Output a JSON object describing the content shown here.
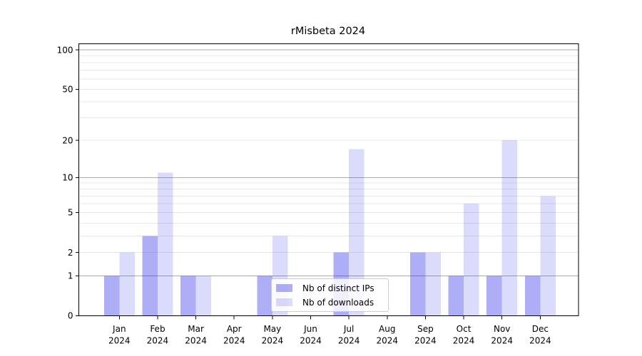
{
  "chart_data": {
    "type": "bar",
    "title": "rMisbeta 2024",
    "categories": [
      "Jan",
      "Feb",
      "Mar",
      "Apr",
      "May",
      "Jun",
      "Jul",
      "Aug",
      "Sep",
      "Oct",
      "Nov",
      "Dec"
    ],
    "category_year": "2024",
    "series": [
      {
        "name": "Nb of distinct IPs",
        "color": "rgba(30,30,230,0.36)",
        "values": [
          1,
          3,
          1,
          0,
          1,
          0,
          2,
          0,
          2,
          1,
          1,
          1
        ]
      },
      {
        "name": "Nb of downloads",
        "color": "rgba(30,30,230,0.16)",
        "values": [
          2,
          11,
          1,
          0,
          3,
          0,
          17,
          0,
          2,
          6,
          20,
          7
        ]
      }
    ],
    "xlabel": "",
    "ylabel": "",
    "yscale": "log1p",
    "yticks": [
      0,
      1,
      2,
      5,
      10,
      20,
      50,
      100
    ],
    "ylim": [
      0,
      110
    ],
    "grid": true,
    "legend_position": "lower-center-inside",
    "colors": {
      "bar_dark_blend": "#a7a7f4",
      "bar_light_blend": "#dbdbfa",
      "gridline_decade": "#ababab",
      "gridline_minor": "#e8e8e8",
      "axis_frame": "#000000",
      "legend_border": "#cccccc"
    }
  }
}
